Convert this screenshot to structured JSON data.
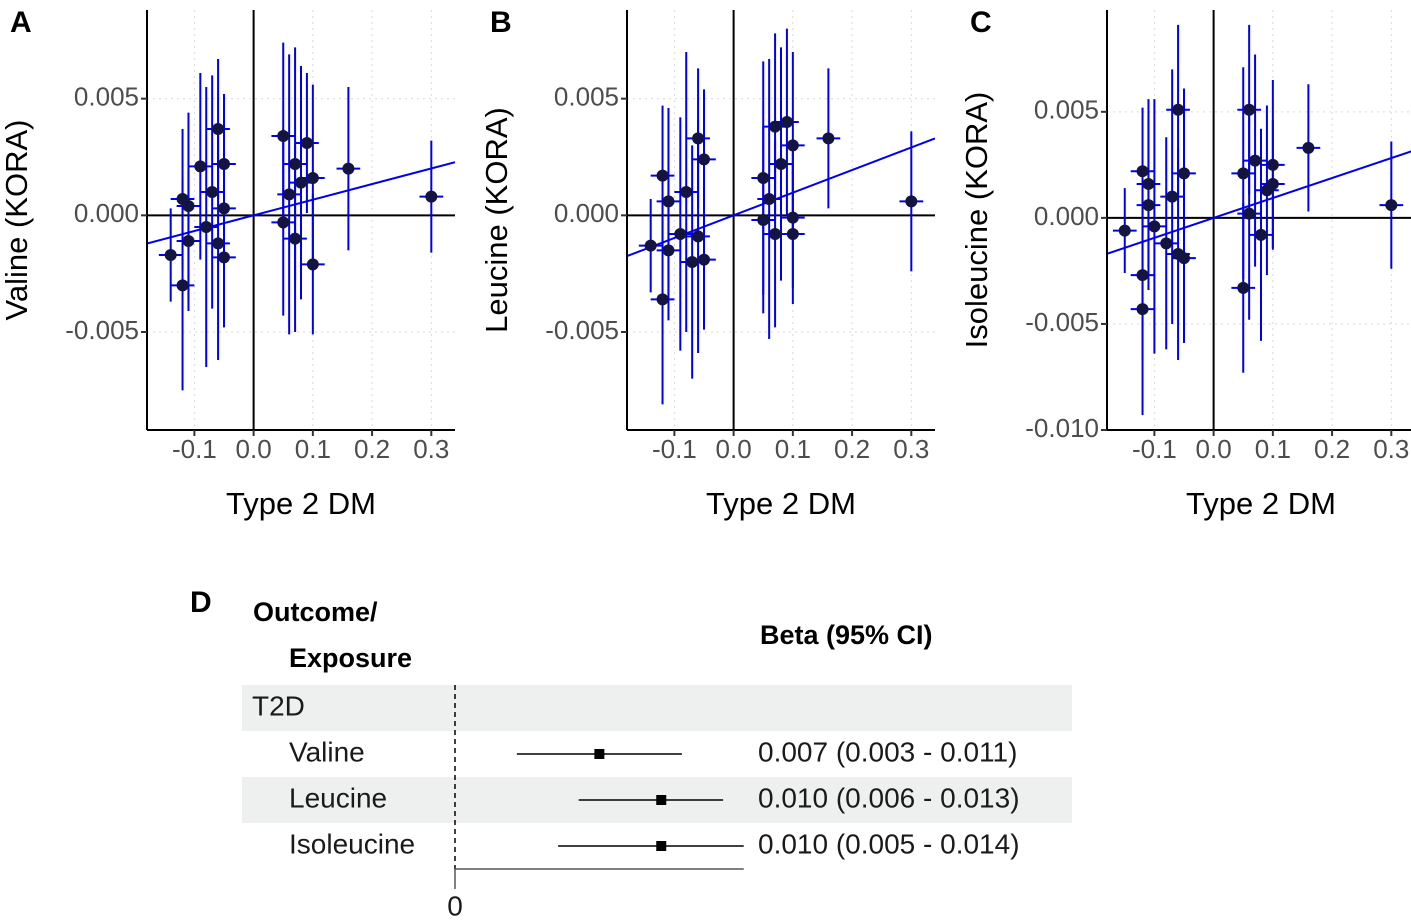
{
  "chart_data": [
    {
      "type": "scatter",
      "panel": "A",
      "x_label": "Type 2 DM",
      "y_label": "Valine (KORA)",
      "xlim": [
        -0.18,
        0.34
      ],
      "ylim": [
        -0.0092,
        0.0088
      ],
      "xticks": [
        -0.1,
        {
          "value": 0,
          "label": "0.0"
        },
        0.1,
        0.2,
        0.3
      ],
      "yticks": [
        -0.005,
        {
          "value": 0,
          "label": "0.000"
        },
        0.005
      ],
      "grid": true,
      "point_color": "#141440",
      "error_color": "#0000ee",
      "fit_color": "#0000ee",
      "fit": {
        "slope": 0.0067,
        "intercept": 0.0
      },
      "x": [
        -0.14,
        -0.12,
        -0.12,
        -0.11,
        -0.11,
        -0.09,
        -0.08,
        -0.07,
        -0.06,
        -0.06,
        -0.05,
        -0.05,
        -0.05,
        0.05,
        0.05,
        0.06,
        0.07,
        0.07,
        0.08,
        0.09,
        0.1,
        0.1,
        0.16,
        0.3
      ],
      "y": [
        -0.0017,
        0.0007,
        -0.003,
        0.0004,
        -0.0011,
        0.0021,
        -0.0005,
        0.001,
        0.0037,
        -0.0012,
        0.0022,
        -0.0018,
        0.0003,
        0.0034,
        -0.0003,
        0.0009,
        0.0022,
        -0.001,
        0.0014,
        0.0031,
        0.0016,
        -0.0021,
        0.002,
        0.0008
      ],
      "xerr": [
        0.02,
        0.02,
        0.02,
        0.02,
        0.02,
        0.02,
        0.02,
        0.02,
        0.02,
        0.02,
        0.02,
        0.02,
        0.02,
        0.02,
        0.02,
        0.02,
        0.02,
        0.02,
        0.02,
        0.02,
        0.02,
        0.02,
        0.02,
        0.02
      ],
      "yerr": [
        0.002,
        0.003,
        0.0045,
        0.004,
        0.003,
        0.004,
        0.006,
        0.005,
        0.003,
        0.005,
        0.003,
        0.003,
        0.004,
        0.004,
        0.004,
        0.006,
        0.005,
        0.004,
        0.005,
        0.003,
        0.004,
        0.003,
        0.0035,
        0.0024
      ]
    },
    {
      "type": "scatter",
      "panel": "B",
      "x_label": "Type 2 DM",
      "y_label": "Leucine (KORA)",
      "xlim": [
        -0.18,
        0.34
      ],
      "ylim": [
        -0.0092,
        0.0088
      ],
      "xticks": [
        -0.1,
        {
          "value": 0,
          "label": "0.0"
        },
        0.1,
        0.2,
        0.3
      ],
      "yticks": [
        -0.005,
        {
          "value": 0,
          "label": "0.000"
        },
        0.005
      ],
      "grid": true,
      "point_color": "#141440",
      "error_color": "#0000ee",
      "fit_color": "#0000ee",
      "fit": {
        "slope": 0.0097,
        "intercept": 0.0
      },
      "x": [
        -0.14,
        -0.12,
        -0.12,
        -0.11,
        -0.11,
        -0.09,
        -0.08,
        -0.07,
        -0.06,
        -0.06,
        -0.05,
        -0.05,
        0.05,
        0.05,
        0.06,
        0.07,
        0.07,
        0.08,
        0.09,
        0.1,
        0.1,
        0.1,
        0.16,
        0.3
      ],
      "y": [
        -0.0013,
        0.0017,
        -0.0036,
        0.0006,
        -0.0015,
        -0.0008,
        0.001,
        -0.002,
        0.0033,
        -0.0009,
        0.0024,
        -0.0019,
        0.0016,
        -0.0002,
        0.0007,
        0.0038,
        -0.0008,
        0.0022,
        0.004,
        0.003,
        -0.0001,
        -0.0008,
        0.0033,
        0.0006
      ],
      "xerr": [
        0.02,
        0.02,
        0.02,
        0.02,
        0.02,
        0.02,
        0.02,
        0.02,
        0.02,
        0.02,
        0.02,
        0.02,
        0.02,
        0.02,
        0.02,
        0.02,
        0.02,
        0.02,
        0.02,
        0.02,
        0.02,
        0.02,
        0.02,
        0.02
      ],
      "yerr": [
        0.002,
        0.003,
        0.0045,
        0.004,
        0.003,
        0.005,
        0.006,
        0.005,
        0.003,
        0.005,
        0.003,
        0.003,
        0.005,
        0.004,
        0.006,
        0.004,
        0.004,
        0.005,
        0.004,
        0.004,
        0.003,
        0.003,
        0.003,
        0.003
      ]
    },
    {
      "type": "scatter",
      "panel": "C",
      "x_label": "Type 2 DM",
      "y_label": "Isoleucine (KORA)",
      "xlim": [
        -0.18,
        0.34
      ],
      "ylim": [
        -0.01,
        0.0098
      ],
      "xticks": [
        -0.1,
        {
          "value": 0,
          "label": "0.0"
        },
        0.1,
        0.2,
        0.3
      ],
      "yticks": [
        {
          "value": -0.01,
          "label": "-0.010"
        },
        -0.005,
        {
          "value": 0,
          "label": "0.000"
        },
        0.005
      ],
      "grid": true,
      "point_color": "#141440",
      "error_color": "#0000ee",
      "fit_color": "#0000ee",
      "fit": {
        "slope": 0.0094,
        "intercept": 0.0
      },
      "x": [
        -0.15,
        -0.12,
        -0.12,
        -0.12,
        -0.11,
        -0.11,
        -0.1,
        -0.08,
        -0.07,
        -0.06,
        -0.06,
        -0.05,
        -0.05,
        0.05,
        0.05,
        0.06,
        0.06,
        0.07,
        0.08,
        0.09,
        0.1,
        0.1,
        0.16,
        0.3
      ],
      "y": [
        -0.0006,
        0.0022,
        -0.0027,
        -0.0043,
        0.0016,
        0.0006,
        -0.0004,
        -0.0012,
        0.001,
        0.0051,
        -0.0017,
        0.0021,
        -0.0019,
        -0.0033,
        0.0021,
        0.0051,
        0.0002,
        0.0027,
        -0.0008,
        0.0013,
        0.0025,
        0.0016,
        0.0033,
        0.0006
      ],
      "xerr": [
        0.02,
        0.02,
        0.02,
        0.02,
        0.02,
        0.02,
        0.02,
        0.02,
        0.02,
        0.02,
        0.02,
        0.02,
        0.02,
        0.02,
        0.02,
        0.02,
        0.02,
        0.02,
        0.02,
        0.02,
        0.02,
        0.02,
        0.02,
        0.02
      ],
      "yerr": [
        0.002,
        0.003,
        0.004,
        0.005,
        0.004,
        0.004,
        0.006,
        0.005,
        0.006,
        0.004,
        0.005,
        0.004,
        0.004,
        0.004,
        0.005,
        0.004,
        0.005,
        0.005,
        0.005,
        0.004,
        0.004,
        0.003,
        0.003,
        0.003
      ]
    },
    {
      "type": "forest",
      "panel": "D",
      "header": [
        "Outcome/",
        "Exposure"
      ],
      "estimate_header": "Beta (95% CI)",
      "group": "T2D",
      "categories": [
        "Valine",
        "Leucine",
        "Isoleucine"
      ],
      "values": [
        0.007,
        0.01,
        0.01
      ],
      "lower": [
        0.003,
        0.006,
        0.005
      ],
      "upper": [
        0.011,
        0.013,
        0.014
      ],
      "value_labels": [
        "0.007 (0.003 - 0.011)",
        "0.010 (0.006 - 0.013)",
        "0.010 (0.005 - 0.014)"
      ],
      "xlim": [
        0,
        0.014
      ],
      "xticks": [
        0
      ],
      "band_color": "#eef0ef",
      "color": "#000000"
    }
  ]
}
